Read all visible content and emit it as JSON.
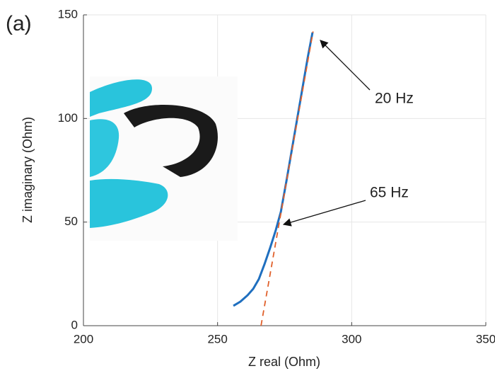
{
  "chart_data": {
    "type": "line",
    "panel_label": "(a)",
    "xlabel": "Z real (Ohm)",
    "ylabel": "Z imaginary (Ohm)",
    "xlim": [
      200,
      350
    ],
    "xticks": [
      200,
      250,
      300,
      350
    ],
    "ylim": [
      0,
      150
    ],
    "yticks": [
      0,
      50,
      100,
      150
    ],
    "grid": true,
    "series": [
      {
        "color": "#1f6fbf",
        "style": "solid",
        "x": [
          255.9,
          258.5,
          261.2,
          263.3,
          265.4,
          267.5,
          269.6,
          271.7,
          273.6,
          275.7,
          277.7,
          279.7,
          281.7,
          283.7,
          285.4
        ],
        "values": [
          9.6,
          11.6,
          14.7,
          17.8,
          22.5,
          29.7,
          37.6,
          46.1,
          55,
          70,
          85,
          100,
          115,
          130,
          141.5
        ]
      },
      {
        "color": "#e0602b",
        "style": "dashed",
        "x": [
          266.2,
          285.6
        ],
        "values": [
          0,
          142
        ]
      }
    ],
    "annotations": [
      "20 Hz",
      "65 Hz"
    ]
  }
}
